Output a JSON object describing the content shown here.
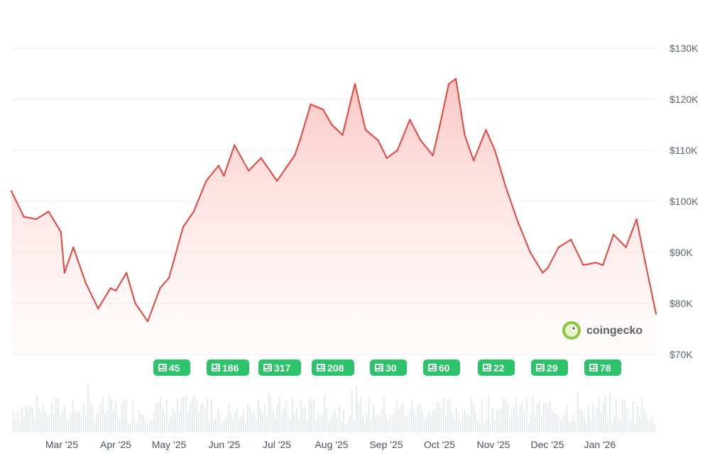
{
  "chart_data": {
    "type": "area",
    "title": "",
    "xlabel": "",
    "ylabel": "",
    "ylim": [
      70000,
      130000
    ],
    "y_ticks": [
      {
        "value": 130000,
        "label": "$130K"
      },
      {
        "value": 120000,
        "label": "$120K"
      },
      {
        "value": 110000,
        "label": "$110K"
      },
      {
        "value": 100000,
        "label": "$100K"
      },
      {
        "value": 90000,
        "label": "$90K"
      },
      {
        "value": 80000,
        "label": "$80K"
      },
      {
        "value": 70000,
        "label": "$70K"
      }
    ],
    "x_ticks": [
      "Mar '25",
      "Apr '25",
      "May '25",
      "Jun '25",
      "Jul '25",
      "Aug '25",
      "Sep '25",
      "Oct '25",
      "Nov '25",
      "Dec '25",
      "Jan '26"
    ],
    "grid": true,
    "line_color": "#e8443a",
    "fill_color": "#f9b4b0",
    "series": [
      {
        "x": [
          "2025-02-01",
          "2025-02-08",
          "2025-02-15",
          "2025-02-22",
          "2025-03-01",
          "2025-03-03",
          "2025-03-08",
          "2025-03-15",
          "2025-03-22",
          "2025-03-29",
          "2025-04-01",
          "2025-04-07",
          "2025-04-12",
          "2025-04-19",
          "2025-04-26",
          "2025-05-01",
          "2025-05-09",
          "2025-05-15",
          "2025-05-22",
          "2025-05-29",
          "2025-06-01",
          "2025-06-07",
          "2025-06-15",
          "2025-06-22",
          "2025-06-29",
          "2025-07-01",
          "2025-07-07",
          "2025-07-11",
          "2025-07-14",
          "2025-07-20",
          "2025-07-27",
          "2025-08-01",
          "2025-08-07",
          "2025-08-14",
          "2025-08-20",
          "2025-08-27",
          "2025-09-01",
          "2025-09-07",
          "2025-09-14",
          "2025-09-20",
          "2025-09-27",
          "2025-10-01",
          "2025-10-06",
          "2025-10-10",
          "2025-10-15",
          "2025-10-20",
          "2025-10-27",
          "2025-11-01",
          "2025-11-07",
          "2025-11-14",
          "2025-11-21",
          "2025-11-28",
          "2025-12-01",
          "2025-12-07",
          "2025-12-14",
          "2025-12-21",
          "2025-12-28",
          "2026-01-01",
          "2026-01-07",
          "2026-01-14",
          "2026-01-20",
          "2026-01-25",
          "2026-01-31"
        ],
        "values": [
          102000,
          97000,
          96500,
          98000,
          94000,
          86000,
          91000,
          84000,
          79000,
          83000,
          82500,
          86000,
          80000,
          76500,
          83000,
          85000,
          95000,
          98000,
          104000,
          107000,
          105000,
          111000,
          106000,
          108500,
          105000,
          104000,
          107000,
          109000,
          112000,
          119000,
          118000,
          115000,
          113000,
          123000,
          114000,
          112000,
          108500,
          110000,
          116000,
          112000,
          109000,
          115000,
          123000,
          124000,
          113000,
          108000,
          114000,
          110000,
          103000,
          96000,
          90000,
          86000,
          87000,
          91000,
          92500,
          87500,
          88000,
          87500,
          93500,
          91000,
          96500,
          88000,
          78000
        ]
      }
    ],
    "news_badges": [
      "45",
      "186",
      "317",
      "208",
      "30",
      "60",
      "22",
      "29",
      "78"
    ],
    "watermark": "coingecko"
  }
}
